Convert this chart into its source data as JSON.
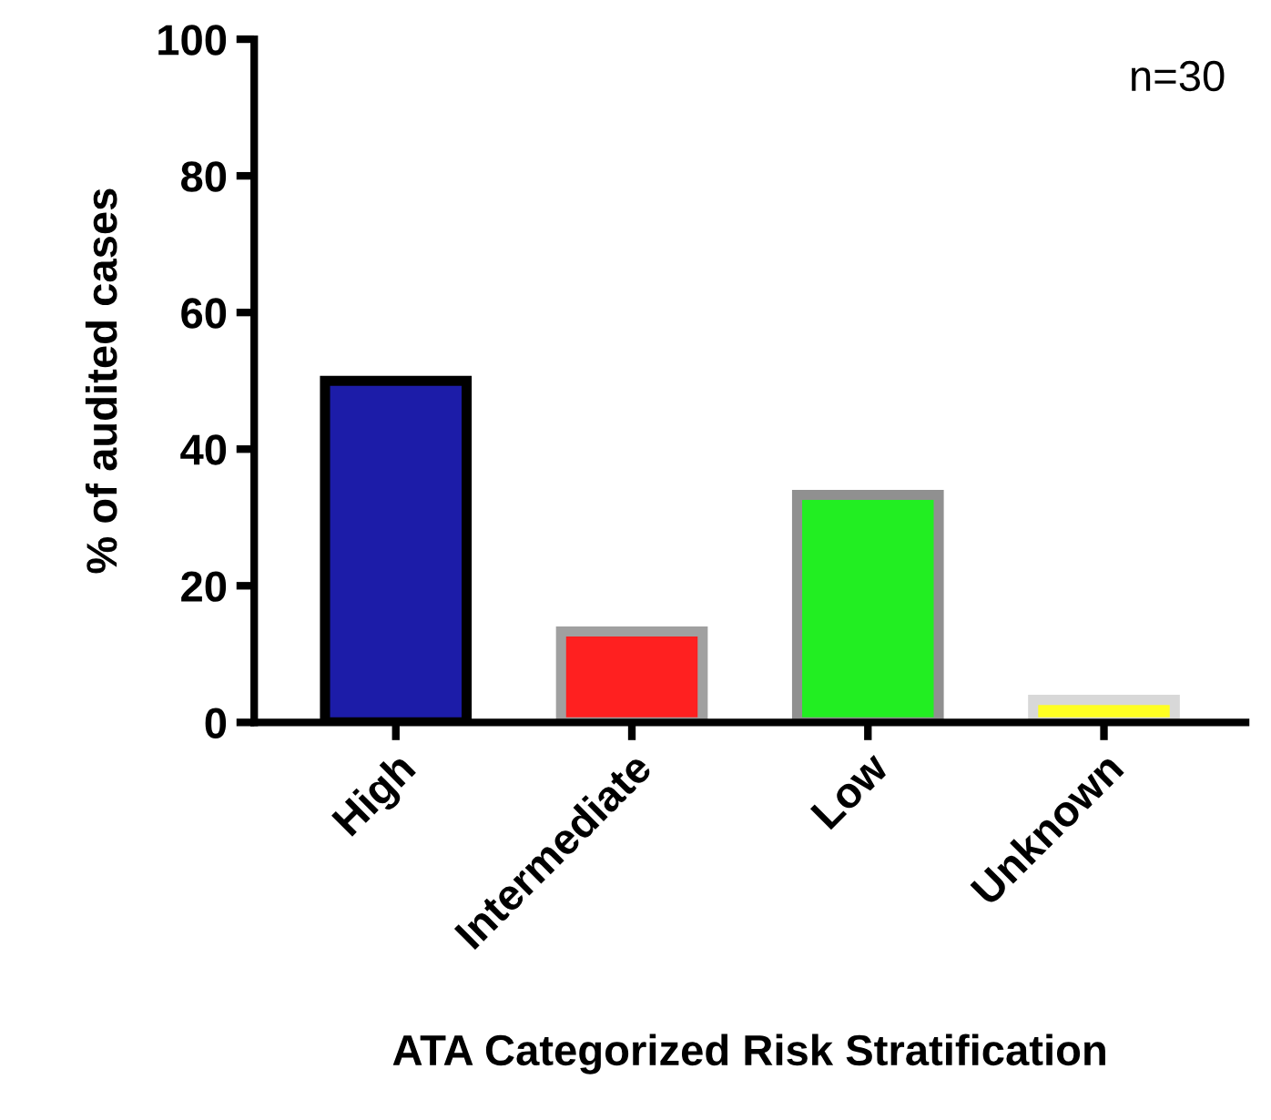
{
  "chart_data": {
    "type": "bar",
    "xlabel": "ATA Categorized Risk Stratification",
    "ylabel": "% of audited cases",
    "categories": [
      "High",
      "Intermediate",
      "Low",
      "Unknown"
    ],
    "values": [
      50,
      13.3,
      33.3,
      3.3
    ],
    "colors": [
      "#1c1ca8",
      "#ff2020",
      "#22ee22",
      "#ffff22"
    ],
    "ylim": [
      0,
      100
    ],
    "yticks": [
      0,
      20,
      40,
      60,
      80,
      100
    ],
    "grid": false,
    "annotations": [
      "n=30"
    ]
  }
}
